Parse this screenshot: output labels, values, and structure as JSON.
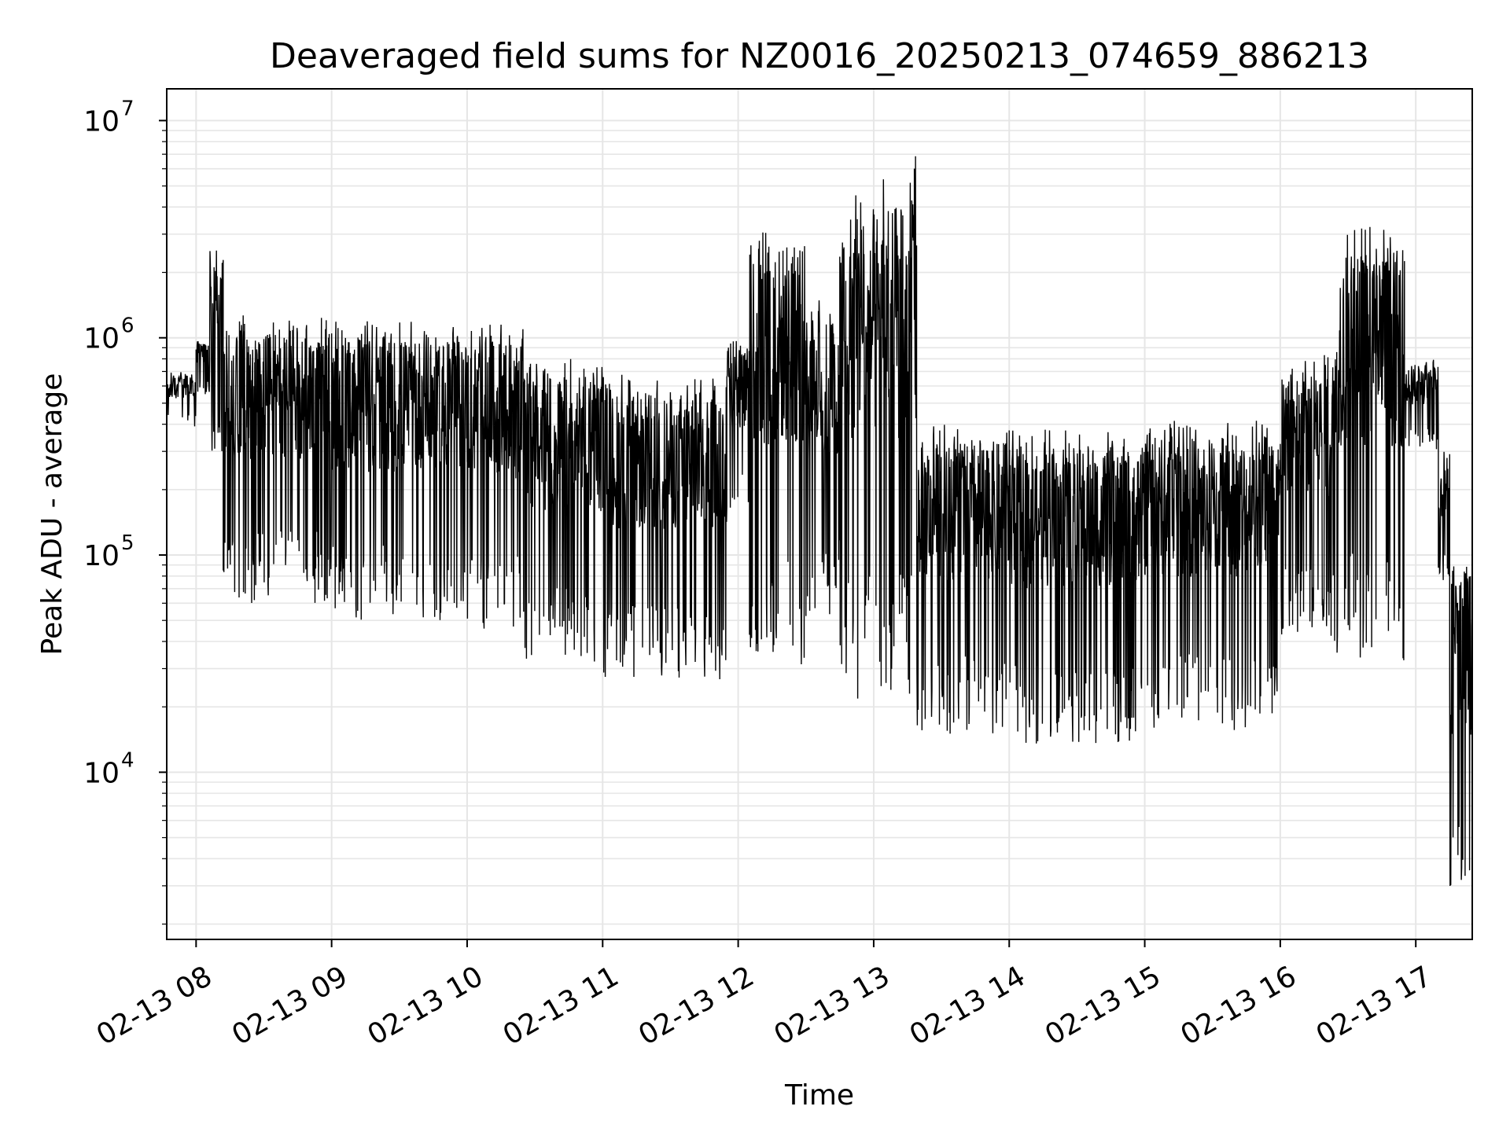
{
  "chart_data": {
    "type": "line",
    "title": "Deaveraged field sums for NZ0016_20250213_074659_886213",
    "xlabel": "Time",
    "ylabel": "Peak ADU - average",
    "xscale": "time",
    "yscale": "log",
    "xlim": [
      "2025-02-13 07:47",
      "2025-02-13 17:25"
    ],
    "ylim": [
      1700,
      14000000
    ],
    "grid": true,
    "line_color": "#000000",
    "grid_color": "#e6e6e6",
    "x_ticks": [
      {
        "value": "2025-02-13 08:00",
        "label": "02-13 08"
      },
      {
        "value": "2025-02-13 09:00",
        "label": "02-13 09"
      },
      {
        "value": "2025-02-13 10:00",
        "label": "02-13 10"
      },
      {
        "value": "2025-02-13 11:00",
        "label": "02-13 11"
      },
      {
        "value": "2025-02-13 12:00",
        "label": "02-13 12"
      },
      {
        "value": "2025-02-13 13:00",
        "label": "02-13 13"
      },
      {
        "value": "2025-02-13 14:00",
        "label": "02-13 14"
      },
      {
        "value": "2025-02-13 15:00",
        "label": "02-13 15"
      },
      {
        "value": "2025-02-13 16:00",
        "label": "02-13 16"
      },
      {
        "value": "2025-02-13 17:00",
        "label": "02-13 17"
      }
    ],
    "y_ticks": [
      {
        "value": 10000,
        "base": "10",
        "exp": "4"
      },
      {
        "value": 100000,
        "base": "10",
        "exp": "5"
      },
      {
        "value": 1000000,
        "base": "10",
        "exp": "6"
      },
      {
        "value": 10000000,
        "base": "10",
        "exp": "7"
      }
    ],
    "segments": [
      {
        "t0": "2025-02-13 07:47",
        "t1": "2025-02-13 08:00",
        "low": 380000,
        "high": 700000,
        "density": 60
      },
      {
        "t0": "2025-02-13 08:00",
        "t1": "2025-02-13 08:06",
        "low": 550000,
        "high": 1000000,
        "density": 40
      },
      {
        "t0": "2025-02-13 08:06",
        "t1": "2025-02-13 08:12",
        "low": 300000,
        "high": 2600000,
        "density": 40
      },
      {
        "t0": "2025-02-13 08:12",
        "t1": "2025-02-13 09:00",
        "low": 60000,
        "high": 1300000,
        "density": 320
      },
      {
        "t0": "2025-02-13 09:00",
        "t1": "2025-02-13 10:00",
        "low": 50000,
        "high": 1200000,
        "density": 380
      },
      {
        "t0": "2025-02-13 10:00",
        "t1": "2025-02-13 10:25",
        "low": 45000,
        "high": 1150000,
        "density": 160
      },
      {
        "t0": "2025-02-13 10:25",
        "t1": "2025-02-13 11:00",
        "low": 32000,
        "high": 800000,
        "density": 220
      },
      {
        "t0": "2025-02-13 11:00",
        "t1": "2025-02-13 11:55",
        "low": 26000,
        "high": 680000,
        "density": 330
      },
      {
        "t0": "2025-02-13 11:55",
        "t1": "2025-02-13 12:05",
        "low": 150000,
        "high": 1000000,
        "density": 60
      },
      {
        "t0": "2025-02-13 12:05",
        "t1": "2025-02-13 12:30",
        "low": 30000,
        "high": 3500000,
        "density": 160
      },
      {
        "t0": "2025-02-13 12:30",
        "t1": "2025-02-13 12:45",
        "low": 50000,
        "high": 1500000,
        "density": 90
      },
      {
        "t0": "2025-02-13 12:45",
        "t1": "2025-02-13 13:18",
        "low": 21000,
        "high": 5500000,
        "density": 200
      },
      {
        "t0": "2025-02-13 13:18",
        "t1": "2025-02-13 13:19",
        "low": 300000,
        "high": 9300000,
        "density": 6
      },
      {
        "t0": "2025-02-13 13:19",
        "t1": "2025-02-13 14:00",
        "low": 15000,
        "high": 400000,
        "density": 260
      },
      {
        "t0": "2025-02-13 14:00",
        "t1": "2025-02-13 15:00",
        "low": 13500,
        "high": 380000,
        "density": 380
      },
      {
        "t0": "2025-02-13 15:00",
        "t1": "2025-02-13 16:00",
        "low": 15500,
        "high": 420000,
        "density": 380
      },
      {
        "t0": "2025-02-13 16:00",
        "t1": "2025-02-13 16:25",
        "low": 40000,
        "high": 900000,
        "density": 160
      },
      {
        "t0": "2025-02-13 16:25",
        "t1": "2025-02-13 16:55",
        "low": 32000,
        "high": 3300000,
        "density": 190
      },
      {
        "t0": "2025-02-13 16:55",
        "t1": "2025-02-13 17:10",
        "low": 300000,
        "high": 800000,
        "density": 90
      },
      {
        "t0": "2025-02-13 17:10",
        "t1": "2025-02-13 17:15",
        "low": 75000,
        "high": 300000,
        "density": 30
      },
      {
        "t0": "2025-02-13 17:15",
        "t1": "2025-02-13 17:25",
        "low": 2300,
        "high": 100000,
        "density": 60
      }
    ]
  }
}
